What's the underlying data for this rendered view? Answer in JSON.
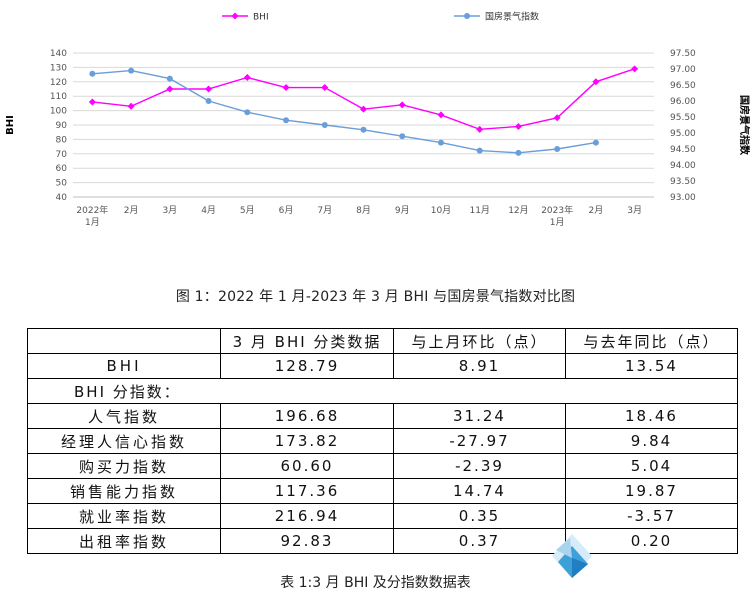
{
  "chart_data": {
    "type": "line",
    "x": [
      "2022年\n1月",
      "2月",
      "3月",
      "4月",
      "5月",
      "6月",
      "7月",
      "8月",
      "9月",
      "10月",
      "11月",
      "12月",
      "2023年\n1月",
      "2月",
      "3月"
    ],
    "series": [
      {
        "name": "BHI",
        "axis": "left",
        "color": "#ff00ff",
        "marker": "diamond",
        "values": [
          106,
          103,
          115,
          115,
          123,
          116,
          116,
          101,
          104,
          97,
          87,
          89,
          95,
          120,
          129
        ]
      },
      {
        "name": "国房景气指数",
        "axis": "right",
        "color": "#6a9ed8",
        "marker": "circle",
        "values": [
          96.85,
          96.95,
          96.7,
          96.0,
          95.65,
          95.4,
          95.25,
          95.1,
          94.9,
          94.7,
          94.45,
          94.38,
          94.5,
          94.7,
          null
        ]
      }
    ],
    "y_left": {
      "label": "BHI",
      "min": 40,
      "max": 140,
      "ticks": [
        "40",
        "50",
        "60",
        "70",
        "80",
        "90",
        "100",
        "110",
        "120",
        "130",
        "140"
      ]
    },
    "y_right": {
      "label": "国房景气指数",
      "min": 93.0,
      "max": 97.5,
      "ticks": [
        "93.00",
        "93.50",
        "94.00",
        "94.50",
        "95.00",
        "95.50",
        "96.00",
        "96.50",
        "97.00",
        "97.50"
      ]
    },
    "grid": true,
    "legend": "top-center"
  },
  "figure_caption": "图 1：2022 年 1 月-2023 年 3 月 BHI 与国房景气指数对比图",
  "table": {
    "headers": [
      "",
      "3 月 BHI 分类数据",
      "与上月环比（点）",
      "与去年同比（点）"
    ],
    "bhi_row": {
      "name": "BHI",
      "values": [
        "128.79",
        "8.91",
        "13.54"
      ]
    },
    "section_label": "BHI 分指数：",
    "rows": [
      {
        "name": "人气指数",
        "values": [
          "196.68",
          "31.24",
          "18.46"
        ]
      },
      {
        "name": "经理人信心指数",
        "values": [
          "173.82",
          "-27.97",
          "9.84"
        ]
      },
      {
        "name": "购买力指数",
        "values": [
          "60.60",
          "-2.39",
          "5.04"
        ]
      },
      {
        "name": "销售能力指数",
        "values": [
          "117.36",
          "14.74",
          "19.87"
        ]
      },
      {
        "name": "就业率指数",
        "values": [
          "216.94",
          "0.35",
          "-3.57"
        ]
      },
      {
        "name": "出租率指数",
        "values": [
          "92.83",
          "0.37",
          "0.20"
        ]
      }
    ]
  },
  "table_caption": "表 1:3 月 BHI 及分指数数据表",
  "colors": {
    "grid": "#d9d9d9",
    "axis_text": "#555555"
  }
}
